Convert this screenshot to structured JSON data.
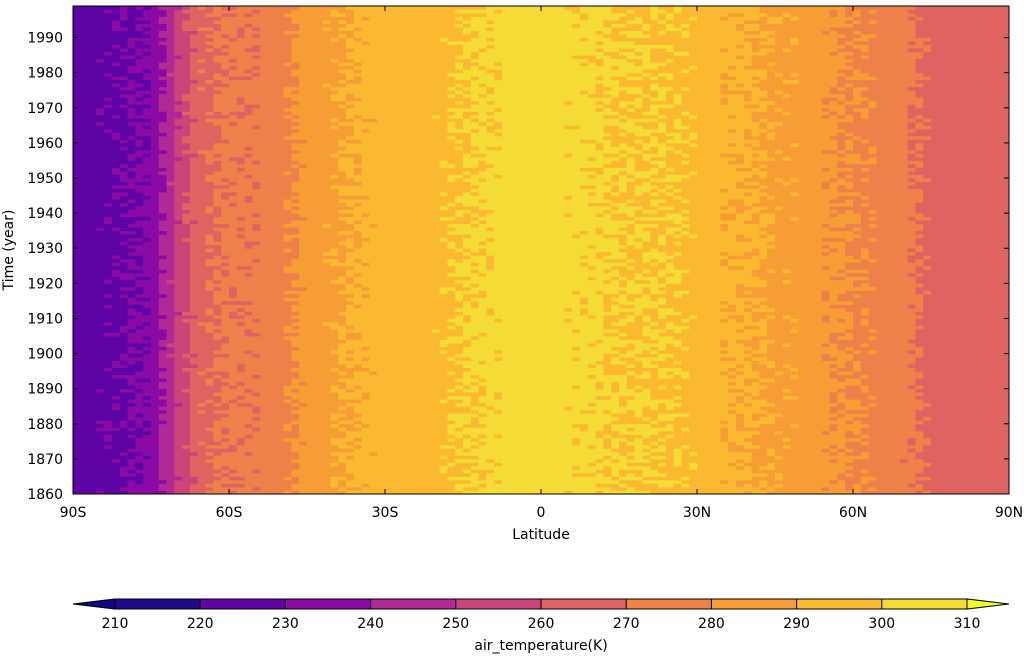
{
  "chart_data": {
    "type": "heatmap",
    "title": "",
    "xlabel": "Latitude",
    "ylabel": "Time (year)",
    "x_tick_values": [
      -90,
      -60,
      -30,
      0,
      30,
      60,
      90
    ],
    "x_tick_labels": [
      "90S",
      "60S",
      "30S",
      "0",
      "30N",
      "60N",
      "90N"
    ],
    "y_tick_values": [
      1860,
      1870,
      1880,
      1890,
      1900,
      1910,
      1920,
      1930,
      1940,
      1950,
      1960,
      1970,
      1980,
      1990
    ],
    "y_tick_labels": [
      "1860",
      "1870",
      "1880",
      "1890",
      "1900",
      "1910",
      "1920",
      "1930",
      "1940",
      "1950",
      "1960",
      "1970",
      "1980",
      "1990"
    ],
    "xlim": [
      -90,
      90
    ],
    "ylim": [
      1860,
      1999
    ],
    "latitudes": [
      -90,
      -85,
      -80,
      -75,
      -70,
      -65,
      -60,
      -55,
      -50,
      -45,
      -40,
      -35,
      -30,
      -25,
      -20,
      -15,
      -10,
      -5,
      0,
      5,
      10,
      15,
      20,
      25,
      30,
      35,
      40,
      45,
      50,
      55,
      60,
      65,
      70,
      75,
      80,
      85,
      90
    ],
    "mean_air_temperature_K": [
      226,
      227,
      229,
      232,
      252,
      268,
      272,
      272,
      276,
      284,
      288,
      292,
      294,
      295,
      297,
      300,
      302,
      304,
      304,
      303,
      302,
      300,
      300,
      299,
      297,
      292,
      291,
      288,
      287,
      282,
      280,
      277,
      273,
      267,
      265,
      264,
      264
    ],
    "colorbar": {
      "label": "air_temperature(K)",
      "levels": [
        210,
        220,
        230,
        240,
        250,
        260,
        270,
        280,
        290,
        300,
        310
      ],
      "tick_labels": [
        "210",
        "220",
        "230",
        "240",
        "250",
        "260",
        "270",
        "280",
        "290",
        "300",
        "310"
      ],
      "colors": [
        "#22098a",
        "#5e03a6",
        "#8b0aa5",
        "#b02994",
        "#cc4578",
        "#df6461",
        "#ee8049",
        "#f79d35",
        "#fbb932",
        "#f5db35"
      ],
      "extend_min_color": "#0d0887",
      "extend_max_color": "#f0f921",
      "extend": "both",
      "location": "bottom"
    },
    "grid": false
  }
}
